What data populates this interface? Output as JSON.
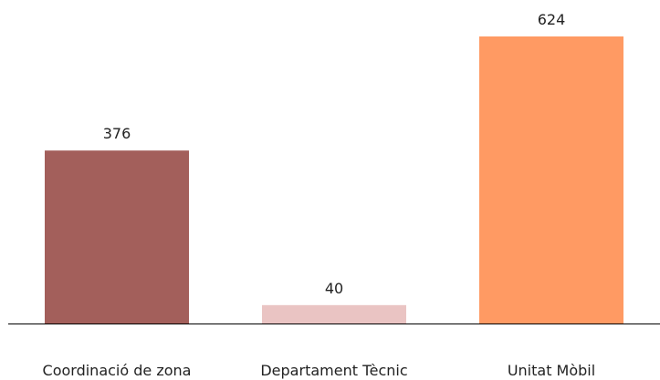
{
  "chart_data": {
    "type": "bar",
    "categories": [
      "Coordinació de zona",
      "Departament Tècnic",
      "Unitat Mòbil"
    ],
    "values": [
      376,
      40,
      624
    ],
    "colors": [
      "#a35f5b",
      "#eac4c3",
      "#ff9a63"
    ],
    "ylim": [
      0,
      650
    ],
    "grid": false,
    "legend": "none",
    "title": "",
    "xlabel": "",
    "ylabel": ""
  }
}
